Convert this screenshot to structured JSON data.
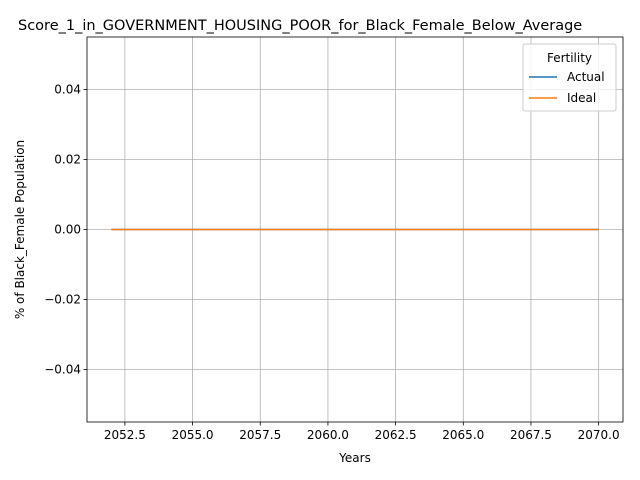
{
  "chart_data": {
    "type": "line",
    "title": "Score_1_in_GOVERNMENT_HOUSING_POOR_for_Black_Female_Below_Average",
    "xlabel": "Years",
    "ylabel": "% of Black_Female Population",
    "xlim": [
      2051.1,
      2070.9
    ],
    "ylim": [
      -0.055,
      0.055
    ],
    "x_ticks": [
      2052.5,
      2055.0,
      2057.5,
      2060.0,
      2062.5,
      2065.0,
      2067.5,
      2070.0
    ],
    "x_tick_labels": [
      "2052.5",
      "2055.0",
      "2057.5",
      "2060.0",
      "2062.5",
      "2065.0",
      "2067.5",
      "2070.0"
    ],
    "y_ticks": [
      -0.04,
      -0.02,
      0.0,
      0.02,
      0.04
    ],
    "y_tick_labels": [
      "−0.04",
      "−0.02",
      "0.00",
      "0.02",
      "0.04"
    ],
    "grid": true,
    "legend": {
      "title": "Fertility",
      "placement": "top-right"
    },
    "x": [
      2052,
      2053,
      2054,
      2055,
      2056,
      2057,
      2058,
      2059,
      2060,
      2061,
      2062,
      2063,
      2064,
      2065,
      2066,
      2067,
      2068,
      2069,
      2070
    ],
    "series": [
      {
        "name": "Actual",
        "color": "#1f77b4",
        "values": [
          0,
          0,
          0,
          0,
          0,
          0,
          0,
          0,
          0,
          0,
          0,
          0,
          0,
          0,
          0,
          0,
          0,
          0,
          0
        ]
      },
      {
        "name": "Ideal",
        "color": "#ff7f0e",
        "values": [
          0,
          0,
          0,
          0,
          0,
          0,
          0,
          0,
          0,
          0,
          0,
          0,
          0,
          0,
          0,
          0,
          0,
          0,
          0
        ]
      }
    ]
  }
}
